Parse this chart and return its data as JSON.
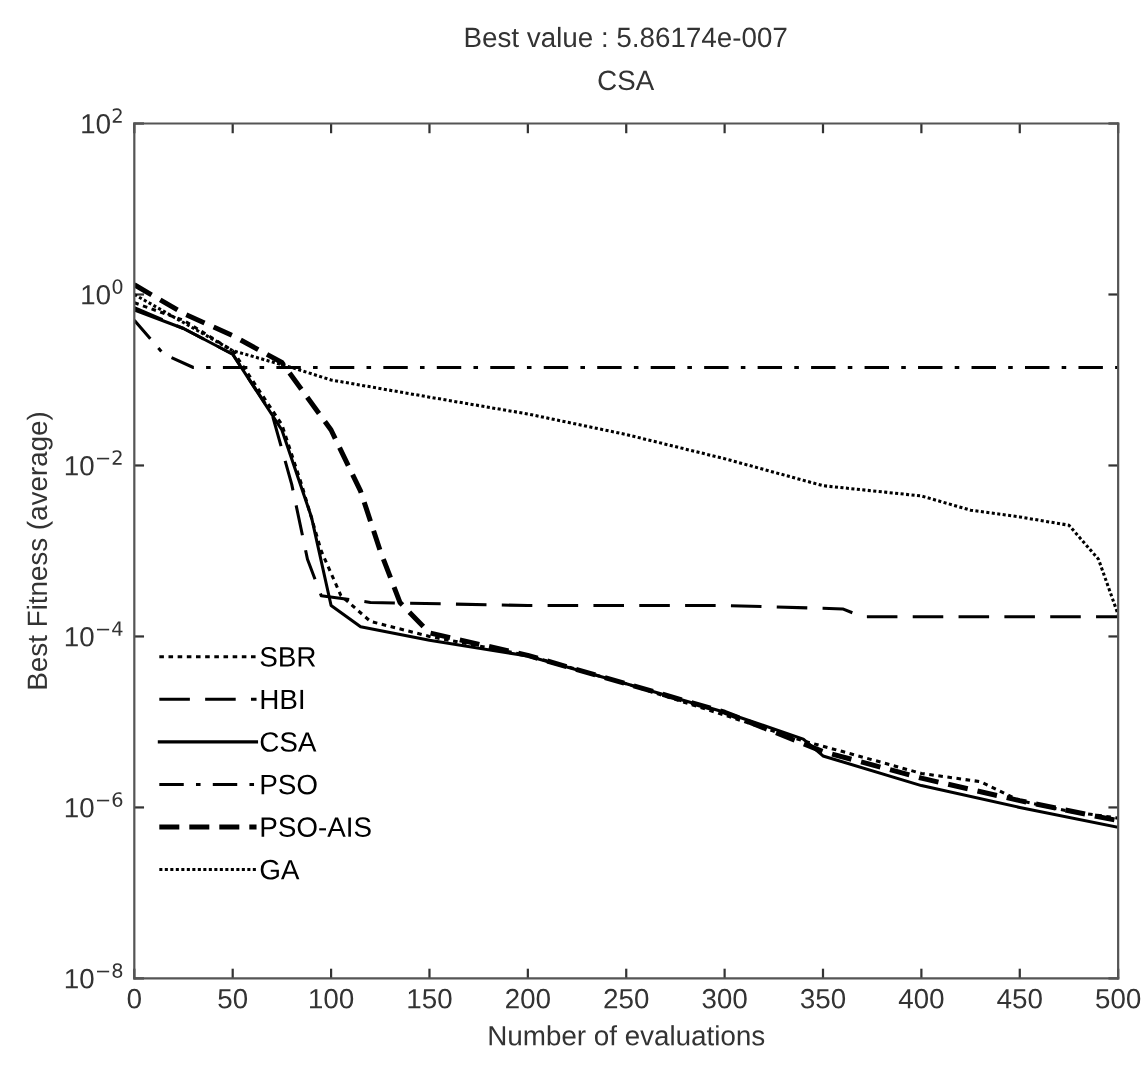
{
  "chart_data": {
    "type": "line",
    "title": "Best value : 5.86174e-007",
    "subtitle": "CSA",
    "xlabel": "Number of evaluations",
    "ylabel": "Best Fitness (average)",
    "log": "y",
    "xlim": [
      0,
      500
    ],
    "ylim": [
      1e-08,
      100
    ],
    "xticks": [
      0,
      50,
      100,
      150,
      200,
      250,
      300,
      350,
      400,
      450,
      500
    ],
    "yticks": [
      {
        "value": 1e-08,
        "label": "10$^{−8}$"
      },
      {
        "value": 1e-06,
        "label": "10$^{−6}$"
      },
      {
        "value": 0.0001,
        "label": "10$^{−4}$"
      },
      {
        "value": 0.01,
        "label": "10$^{−2}$"
      },
      {
        "value": 1,
        "label": "10$^{0}$"
      },
      {
        "value": 100,
        "label": "10$^{2}$"
      }
    ],
    "grid": false,
    "legend": "bottom left",
    "marker": "none",
    "series": [
      {
        "name": "SBR",
        "color": "#000000",
        "line_style": "dotted",
        "x": [
          0,
          25,
          50,
          75,
          85,
          95,
          105,
          120,
          150,
          200,
          250,
          300,
          340,
          360,
          400,
          430,
          450,
          475,
          500
        ],
        "values": [
          0.8,
          0.5,
          0.22,
          0.03,
          0.006,
          0.001,
          0.0003,
          0.00015,
          0.0001,
          6e-05,
          2.8e-05,
          1.2e-05,
          6e-06,
          4.5e-06,
          2.5e-06,
          2e-06,
          1.2e-06,
          9e-07,
          7.5e-07
        ]
      },
      {
        "name": "HBI",
        "color": "#000000",
        "line_style": "longdash",
        "x": [
          0,
          25,
          50,
          70,
          80,
          88,
          95,
          120,
          200,
          300,
          360,
          370,
          450,
          500
        ],
        "values": [
          0.7,
          0.4,
          0.2,
          0.04,
          0.006,
          0.0008,
          0.0003,
          0.00025,
          0.00023,
          0.00023,
          0.00021,
          0.00017,
          0.00017,
          0.00017
        ]
      },
      {
        "name": "CSA",
        "color": "#000000",
        "line_style": "solid",
        "x": [
          0,
          25,
          50,
          75,
          90,
          100,
          115,
          150,
          200,
          250,
          300,
          340,
          350,
          400,
          450,
          500
        ],
        "values": [
          0.66,
          0.4,
          0.2,
          0.026,
          0.0025,
          0.00023,
          0.00013,
          9e-05,
          5.9e-05,
          2.8e-05,
          1.3e-05,
          6.3e-06,
          4e-06,
          1.8e-06,
          1e-06,
          5.86e-07
        ]
      },
      {
        "name": "PSO",
        "color": "#000000",
        "line_style": "dashdot",
        "x": [
          0,
          15,
          30,
          100,
          200,
          300,
          400,
          500
        ],
        "values": [
          0.5,
          0.2,
          0.14,
          0.14,
          0.14,
          0.14,
          0.14,
          0.14
        ]
      },
      {
        "name": "PSO-AIS",
        "color": "#000000",
        "line_style": "dashed",
        "x": [
          0,
          25,
          50,
          75,
          100,
          115,
          125,
          135,
          150,
          200,
          250,
          300,
          350,
          400,
          450,
          500
        ],
        "values": [
          1.3,
          0.6,
          0.33,
          0.16,
          0.026,
          0.005,
          0.001,
          0.00025,
          0.00011,
          6e-05,
          2.8e-05,
          1.3e-05,
          4.5e-06,
          2.2e-06,
          1.2e-06,
          7e-07
        ]
      },
      {
        "name": "GA",
        "color": "#000000",
        "line_style": "densedot",
        "x": [
          0,
          50,
          80,
          100,
          150,
          200,
          250,
          300,
          350,
          400,
          425,
          450,
          475,
          490,
          500
        ],
        "values": [
          1.0,
          0.22,
          0.14,
          0.1,
          0.063,
          0.04,
          0.023,
          0.012,
          0.0058,
          0.0044,
          0.003,
          0.0025,
          0.002,
          0.0008,
          0.00018
        ]
      }
    ]
  }
}
